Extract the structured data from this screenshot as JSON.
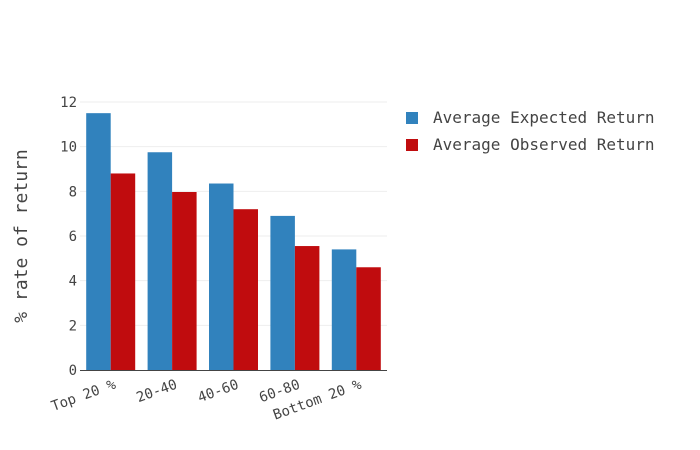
{
  "chart_data": {
    "type": "bar",
    "title": "",
    "xlabel": "",
    "ylabel": "% rate of return",
    "categories": [
      "Top 20 %",
      "20-40",
      "40-60",
      "60-80",
      "Bottom 20 %"
    ],
    "series": [
      {
        "name": "Average Expected Return",
        "color": "#3182bd",
        "values": [
          11.5,
          9.75,
          8.35,
          6.9,
          5.4
        ]
      },
      {
        "name": "Average Observed Return",
        "color": "#c00c0e",
        "values": [
          8.8,
          7.97,
          7.2,
          5.55,
          4.6
        ]
      }
    ],
    "ylim": [
      0,
      12
    ],
    "yticks": [
      "0",
      "2",
      "4",
      "6",
      "8",
      "10",
      "12"
    ],
    "grid": true,
    "legend": "top-right"
  }
}
